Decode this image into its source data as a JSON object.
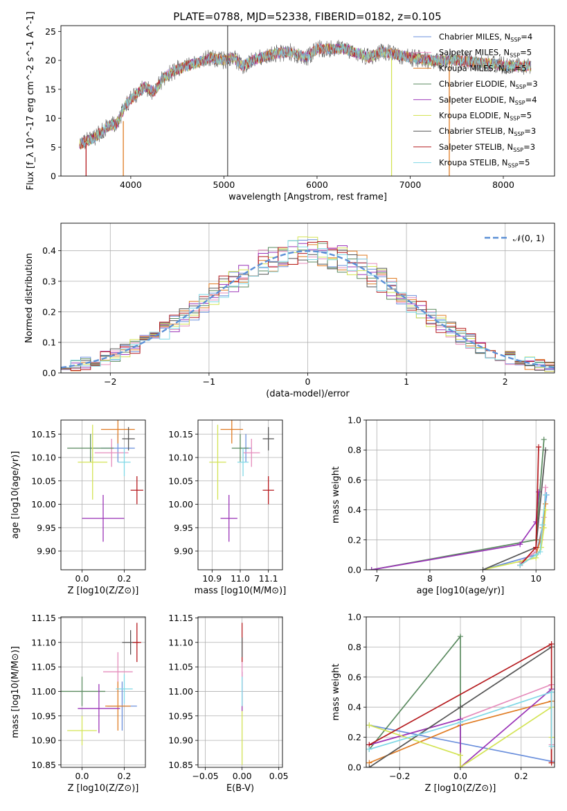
{
  "figure_title": "PLATE=0788, MJD=52338, FIBERID=0182, z=0.105",
  "palette": {
    "chabrier_miles": "#6a8fdc",
    "salpeter_miles": "#e58bbb",
    "kroupa_miles": "#e07b22",
    "chabrier_elodie": "#5a8a5f",
    "salpeter_elodie": "#9a33b7",
    "kroupa_elodie": "#d3e353",
    "chabrier_stelib": "#555555",
    "salpeter_stelib": "#b51a1e",
    "kroupa_stelib": "#7fd8e6",
    "normal_curve": "#5b8fd6",
    "grid": "#b0b0b0"
  },
  "chart_data": [
    {
      "id": "spectrum",
      "type": "line",
      "title": "PLATE=0788, MJD=52338, FIBERID=0182, z=0.105",
      "xlabel": "wavelength [Angstrom, rest frame]",
      "ylabel": "Flux [f_λ 10^-17 erg cm^-2 s^-1 A^-1]",
      "xlim": [
        3250,
        8550
      ],
      "ylim": [
        0,
        26
      ],
      "xticks": [
        "4000",
        "5000",
        "6000",
        "7000",
        "8000"
      ],
      "yticks": [
        "0",
        "5",
        "10",
        "15",
        "20",
        "25"
      ],
      "grid": false,
      "legend_position": "right",
      "legend": [
        {
          "label": "Chabrier MILES, N",
          "sub": "SSP",
          "tail": "=4",
          "color": "#6a8fdc"
        },
        {
          "label": "Salpeter MILES, N",
          "sub": "SSP",
          "tail": "=5",
          "color": "#e58bbb"
        },
        {
          "label": "Kroupa MILES, N",
          "sub": "SSP",
          "tail": "=5",
          "color": "#e07b22"
        },
        {
          "label": "Chabrier ELODIE, N",
          "sub": "SSP",
          "tail": "=3",
          "color": "#5a8a5f"
        },
        {
          "label": "Salpeter ELODIE, N",
          "sub": "SSP",
          "tail": "=4",
          "color": "#9a33b7"
        },
        {
          "label": "Kroupa ELODIE, N",
          "sub": "SSP",
          "tail": "=5",
          "color": "#d3e353"
        },
        {
          "label": "Chabrier STELIB, N",
          "sub": "SSP",
          "tail": "=3",
          "color": "#555555"
        },
        {
          "label": "Salpeter STELIB, N",
          "sub": "SSP",
          "tail": "=3",
          "color": "#b51a1e"
        },
        {
          "label": "Kroupa STELIB, N",
          "sub": "SSP",
          "tail": "=5",
          "color": "#7fd8e6"
        }
      ],
      "continuum": [
        [
          3450,
          5.5
        ],
        [
          3600,
          6.5
        ],
        [
          3750,
          8.5
        ],
        [
          3850,
          9.0
        ],
        [
          3950,
          12.5
        ],
        [
          4050,
          14.0
        ],
        [
          4150,
          15.5
        ],
        [
          4250,
          14.5
        ],
        [
          4350,
          17.0
        ],
        [
          4500,
          18.5
        ],
        [
          4700,
          19.5
        ],
        [
          4860,
          20.5
        ],
        [
          5000,
          20.0
        ],
        [
          5100,
          20.5
        ],
        [
          5200,
          19.0
        ],
        [
          5300,
          20.0
        ],
        [
          5500,
          21.0
        ],
        [
          5700,
          21.5
        ],
        [
          5890,
          20.5
        ],
        [
          6000,
          22.0
        ],
        [
          6300,
          22.0
        ],
        [
          6563,
          20.5
        ],
        [
          6700,
          21.5
        ],
        [
          7000,
          20.5
        ],
        [
          7200,
          20.0
        ],
        [
          7500,
          20.0
        ],
        [
          7800,
          19.5
        ],
        [
          8100,
          19.0
        ],
        [
          8300,
          19.0
        ]
      ],
      "noise_amplitude": 1.2,
      "dropouts": [
        [
          3520,
          0,
          5.8
        ],
        [
          3920,
          0,
          9.5
        ],
        [
          5040,
          0,
          26
        ],
        [
          6800,
          0,
          20.5
        ],
        [
          7420,
          0,
          20.0
        ]
      ]
    },
    {
      "id": "residual_hist",
      "type": "line",
      "xlabel": "(data-model)/error",
      "ylabel": "Normed distribution",
      "xlim": [
        -2.5,
        2.5
      ],
      "ylim": [
        0,
        0.49
      ],
      "xticks": [
        "−2",
        "−1",
        "0",
        "1",
        "2"
      ],
      "yticks": [
        "0.0",
        "0.1",
        "0.2",
        "0.3",
        "0.4"
      ],
      "grid": true,
      "legend_position": "top-right",
      "curve_label": "𝒩(0, 1)",
      "bin_width": 0.1,
      "gaussian_sigma": 1.0
    },
    {
      "id": "age_vs_Z",
      "type": "scatter",
      "xlabel": "Z [log10(Z/Z⊙)]",
      "ylabel": "age [log10(age/yr)]",
      "xlim": [
        -0.1,
        0.3
      ],
      "ylim": [
        9.86,
        10.18
      ],
      "xticks": [
        "0.0",
        "0.2"
      ],
      "yticks": [
        "9.90",
        "9.95",
        "10.00",
        "10.05",
        "10.10",
        "10.15"
      ],
      "grid": true,
      "points": [
        {
          "x": 0.17,
          "y": 10.12,
          "xerr": 0.08,
          "yerr": 0.03,
          "color": "#6a8fdc"
        },
        {
          "x": 0.14,
          "y": 10.11,
          "xerr": 0.08,
          "yerr": 0.03,
          "color": "#e58bbb"
        },
        {
          "x": 0.17,
          "y": 10.16,
          "xerr": 0.08,
          "yerr": 0.03,
          "color": "#e07b22"
        },
        {
          "x": 0.04,
          "y": 10.12,
          "xerr": 0.11,
          "yerr": 0.03,
          "color": "#5a8a5f"
        },
        {
          "x": 0.1,
          "y": 9.97,
          "xerr": 0.1,
          "yerr": 0.05,
          "color": "#9a33b7"
        },
        {
          "x": 0.05,
          "y": 10.09,
          "xerr": 0.07,
          "yerr": 0.08,
          "color": "#d3e353"
        },
        {
          "x": 0.22,
          "y": 10.14,
          "xerr": 0.03,
          "yerr": 0.025,
          "color": "#555555"
        },
        {
          "x": 0.26,
          "y": 10.03,
          "xerr": 0.03,
          "yerr": 0.03,
          "color": "#b51a1e"
        },
        {
          "x": 0.2,
          "y": 10.09,
          "xerr": 0.03,
          "yerr": 0.03,
          "color": "#7fd8e6"
        }
      ]
    },
    {
      "id": "age_vs_mass",
      "type": "scatter",
      "xlabel": "mass [log10(M/M⊙)]",
      "xlim": [
        10.85,
        11.15
      ],
      "ylim": [
        9.86,
        10.18
      ],
      "xticks": [
        "10.9",
        "11.0",
        "11.1"
      ],
      "yticks": [
        "9.90",
        "9.95",
        "10.00",
        "10.05",
        "10.10",
        "10.15"
      ],
      "grid": true,
      "points": [
        {
          "x": 11.02,
          "y": 10.12,
          "xerr": 0.02,
          "yerr": 0.03,
          "color": "#6a8fdc"
        },
        {
          "x": 11.04,
          "y": 10.11,
          "xerr": 0.03,
          "yerr": 0.03,
          "color": "#e58bbb"
        },
        {
          "x": 10.97,
          "y": 10.16,
          "xerr": 0.04,
          "yerr": 0.03,
          "color": "#e07b22"
        },
        {
          "x": 11.0,
          "y": 10.12,
          "xerr": 0.03,
          "yerr": 0.03,
          "color": "#5a8a5f"
        },
        {
          "x": 10.96,
          "y": 9.97,
          "xerr": 0.03,
          "yerr": 0.05,
          "color": "#9a33b7"
        },
        {
          "x": 10.92,
          "y": 10.09,
          "xerr": 0.03,
          "yerr": 0.08,
          "color": "#d3e353"
        },
        {
          "x": 11.1,
          "y": 10.14,
          "xerr": 0.02,
          "yerr": 0.025,
          "color": "#555555"
        },
        {
          "x": 11.1,
          "y": 10.03,
          "xerr": 0.02,
          "yerr": 0.03,
          "color": "#b51a1e"
        },
        {
          "x": 11.01,
          "y": 10.09,
          "xerr": 0.02,
          "yerr": 0.03,
          "color": "#7fd8e6"
        }
      ]
    },
    {
      "id": "weight_vs_age",
      "type": "line",
      "xlabel": "age [log10(age/yr)]",
      "ylabel": "mass weight",
      "xlim": [
        6.8,
        10.35
      ],
      "ylim": [
        0,
        1.0
      ],
      "xticks": [
        "7",
        "8",
        "9",
        "10"
      ],
      "yticks": [
        "0.0",
        "0.2",
        "0.4",
        "0.6",
        "0.8",
        "1.0"
      ],
      "grid": true,
      "series": [
        {
          "color": "#6a8fdc",
          "x": [
            9.0,
            10.0,
            10.13,
            10.2
          ],
          "y": [
            0.0,
            0.1,
            0.3,
            0.5
          ]
        },
        {
          "color": "#e58bbb",
          "x": [
            9.7,
            10.0,
            10.1,
            10.15,
            10.18
          ],
          "y": [
            0.05,
            0.12,
            0.2,
            0.35,
            0.55
          ]
        },
        {
          "color": "#e07b22",
          "x": [
            9.7,
            10.0,
            10.08,
            10.12,
            10.18
          ],
          "y": [
            0.03,
            0.1,
            0.2,
            0.28,
            0.44
          ]
        },
        {
          "color": "#5a8a5f",
          "x": [
            6.9,
            10.0,
            10.15
          ],
          "y": [
            0.0,
            0.2,
            0.87
          ]
        },
        {
          "color": "#9a33b7",
          "x": [
            6.9,
            9.7,
            10.0,
            10.05
          ],
          "y": [
            0.0,
            0.17,
            0.32,
            0.52
          ]
        },
        {
          "color": "#d3e353",
          "x": [
            9.0,
            10.0,
            10.1,
            10.15,
            10.18
          ],
          "y": [
            0.0,
            0.08,
            0.15,
            0.28,
            0.4
          ]
        },
        {
          "color": "#555555",
          "x": [
            9.0,
            10.0,
            10.18
          ],
          "y": [
            0.0,
            0.15,
            0.8
          ]
        },
        {
          "color": "#b51a1e",
          "x": [
            9.7,
            10.0,
            10.05
          ],
          "y": [
            0.03,
            0.15,
            0.82
          ]
        },
        {
          "color": "#7fd8e6",
          "x": [
            9.7,
            10.0,
            10.08,
            10.12,
            10.18
          ],
          "y": [
            0.03,
            0.1,
            0.12,
            0.3,
            0.5
          ]
        }
      ]
    },
    {
      "id": "mass_vs_Z",
      "type": "scatter",
      "xlabel": "Z [log10(Z/Z⊙)]",
      "ylabel": "mass [log10(M/M⊙)]",
      "xlim": [
        -0.1,
        0.3
      ],
      "ylim": [
        10.845,
        11.152
      ],
      "xticks": [
        "0.0",
        "0.2"
      ],
      "yticks": [
        "10.85",
        "10.90",
        "10.95",
        "11.00",
        "11.05",
        "11.10",
        "11.15"
      ],
      "grid": true,
      "points": [
        {
          "x": 0.19,
          "y": 10.97,
          "xerr": 0.07,
          "yerr": 0.05,
          "color": "#6a8fdc"
        },
        {
          "x": 0.17,
          "y": 11.04,
          "xerr": 0.07,
          "yerr": 0.04,
          "color": "#e58bbb"
        },
        {
          "x": 0.17,
          "y": 10.97,
          "xerr": 0.06,
          "yerr": 0.05,
          "color": "#e07b22"
        },
        {
          "x": 0.0,
          "y": 11.0,
          "xerr": 0.11,
          "yerr": 0.03,
          "color": "#5a8a5f"
        },
        {
          "x": 0.08,
          "y": 10.965,
          "xerr": 0.1,
          "yerr": 0.05,
          "color": "#9a33b7"
        },
        {
          "x": 0.0,
          "y": 10.92,
          "xerr": 0.07,
          "yerr": 0.03,
          "color": "#d3e353"
        },
        {
          "x": 0.23,
          "y": 11.1,
          "xerr": 0.04,
          "yerr": 0.025,
          "color": "#555555"
        },
        {
          "x": 0.26,
          "y": 11.1,
          "xerr": 0.02,
          "yerr": 0.04,
          "color": "#b51a1e"
        },
        {
          "x": 0.2,
          "y": 11.005,
          "xerr": 0.04,
          "yerr": 0.03,
          "color": "#7fd8e6"
        }
      ]
    },
    {
      "id": "mass_vs_ebv",
      "type": "scatter",
      "xlabel": "E(B-V)",
      "xlim": [
        -0.06,
        0.055
      ],
      "ylim": [
        10.845,
        11.152
      ],
      "xticks": [
        "−0.05",
        "0.00",
        "0.05"
      ],
      "yticks": [
        "10.85",
        "10.90",
        "10.95",
        "11.00",
        "11.05",
        "11.10",
        "11.15"
      ],
      "grid": true,
      "points": [
        {
          "x": 0.0,
          "y": 10.92,
          "yerr": 0.07,
          "color": "#d3e353"
        },
        {
          "x": 0.0,
          "y": 11.0,
          "yerr": 0.04,
          "color": "#9a33b7"
        },
        {
          "x": 0.0,
          "y": 11.04,
          "yerr": 0.03,
          "color": "#e58bbb"
        },
        {
          "x": 0.0,
          "y": 11.0,
          "yerr": 0.03,
          "color": "#7fd8e6"
        },
        {
          "x": 0.0,
          "y": 11.1,
          "yerr": 0.04,
          "color": "#b51a1e"
        },
        {
          "x": 0.0,
          "y": 11.09,
          "yerr": 0.02,
          "color": "#555555"
        }
      ]
    },
    {
      "id": "weight_vs_Z",
      "type": "line",
      "xlabel": "Z [log10(Z/Z⊙)]",
      "ylabel": "mass weight",
      "xlim": [
        -0.31,
        0.31
      ],
      "ylim": [
        0,
        1.0
      ],
      "xticks": [
        "−0.2",
        "0.0",
        "0.2"
      ],
      "yticks": [
        "0.0",
        "0.2",
        "0.4",
        "0.6",
        "0.8",
        "1.0"
      ],
      "grid": true,
      "series": [
        {
          "color": "#6a8fdc",
          "x": [
            -0.3,
            0.3,
            0.3
          ],
          "y": [
            0.28,
            0.04,
            0.5
          ]
        },
        {
          "color": "#e58bbb",
          "x": [
            -0.3,
            0.0,
            0.3,
            0.3
          ],
          "y": [
            0.15,
            0.32,
            0.55,
            0.15
          ]
        },
        {
          "color": "#e07b22",
          "x": [
            -0.3,
            0.0,
            0.3,
            0.3
          ],
          "y": [
            0.03,
            0.28,
            0.44,
            0.03
          ]
        },
        {
          "color": "#5a8a5f",
          "x": [
            -0.3,
            0.0,
            0.0
          ],
          "y": [
            0.12,
            0.87,
            0.0
          ]
        },
        {
          "color": "#9a33b7",
          "x": [
            -0.3,
            0.0,
            0.0,
            0.3
          ],
          "y": [
            0.15,
            0.32,
            0.0,
            0.52
          ]
        },
        {
          "color": "#d3e353",
          "x": [
            -0.3,
            0.0,
            0.0,
            0.3,
            0.3
          ],
          "y": [
            0.28,
            0.08,
            0.0,
            0.4,
            0.2
          ]
        },
        {
          "color": "#555555",
          "x": [
            -0.3,
            0.0,
            0.3
          ],
          "y": [
            0.0,
            0.4,
            0.8
          ]
        },
        {
          "color": "#b51a1e",
          "x": [
            -0.3,
            0.3,
            0.3
          ],
          "y": [
            0.15,
            0.82,
            0.03
          ]
        },
        {
          "color": "#7fd8e6",
          "x": [
            -0.3,
            0.0,
            0.3,
            0.3
          ],
          "y": [
            0.12,
            0.3,
            0.5,
            0.14
          ]
        }
      ]
    }
  ]
}
